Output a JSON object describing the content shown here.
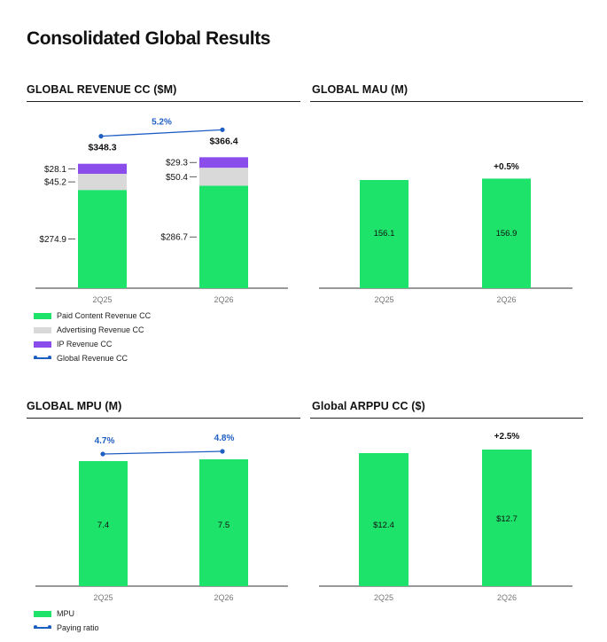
{
  "page": {
    "title": "Consolidated Global Results"
  },
  "colors": {
    "paid": "#1ee36a",
    "ads": "#d9d9d9",
    "ip": "#8a4dec",
    "line": "#1f5fc4",
    "axis": "#333333"
  },
  "chart_data": [
    {
      "id": "revenue",
      "type": "bar",
      "stacked": true,
      "title": "GLOBAL REVENUE CC ($M)",
      "categories": [
        "2Q25",
        "2Q26"
      ],
      "series": [
        {
          "name": "Paid Content Revenue CC",
          "values": [
            274.9,
            286.7
          ],
          "labels": [
            "$274.9",
            "$286.7"
          ],
          "color": "#1ee36a"
        },
        {
          "name": "Advertising Revenue CC",
          "values": [
            45.2,
            50.4
          ],
          "labels": [
            "$45.2",
            "$50.4"
          ],
          "color": "#d9d9d9"
        },
        {
          "name": "IP Revenue CC",
          "values": [
            28.1,
            29.3
          ],
          "labels": [
            "$28.1",
            "$29.3"
          ],
          "color": "#8a4dec"
        }
      ],
      "totals": [
        348.3,
        366.4
      ],
      "total_labels": [
        "$348.3",
        "$366.4"
      ],
      "line": {
        "name": "Global Revenue CC",
        "annotation": "5.2%"
      },
      "legend": [
        {
          "label": "Paid Content Revenue CC",
          "kind": "box",
          "color": "#1ee36a"
        },
        {
          "label": "Advertising Revenue CC",
          "kind": "box",
          "color": "#d9d9d9"
        },
        {
          "label": "IP Revenue CC",
          "kind": "box",
          "color": "#8a4dec"
        },
        {
          "label": "Global Revenue CC",
          "kind": "line",
          "color": "#1f5fc4"
        }
      ]
    },
    {
      "id": "mau",
      "type": "bar",
      "title": "GLOBAL MAU (M)",
      "categories": [
        "2Q25",
        "2Q26"
      ],
      "values": [
        156.1,
        156.9
      ],
      "labels": [
        "156.1",
        "156.9"
      ],
      "change": "+0.5%"
    },
    {
      "id": "mpu",
      "type": "bar",
      "title": "GLOBAL MPU (M)",
      "categories": [
        "2Q25",
        "2Q26"
      ],
      "values": [
        7.4,
        7.5
      ],
      "labels": [
        "7.4",
        "7.5"
      ],
      "line": {
        "name": "Paying ratio",
        "values": [
          4.7,
          4.8
        ],
        "labels": [
          "4.7%",
          "4.8%"
        ]
      },
      "legend": [
        {
          "label": "MPU",
          "kind": "box",
          "color": "#1ee36a"
        },
        {
          "label": "Paying ratio",
          "kind": "line",
          "color": "#1f5fc4"
        }
      ]
    },
    {
      "id": "arppu",
      "type": "bar",
      "title": "Global ARPPU CC ($)",
      "categories": [
        "2Q25",
        "2Q26"
      ],
      "values": [
        12.4,
        12.7
      ],
      "labels": [
        "$12.4",
        "$12.7"
      ],
      "change": "+2.5%"
    }
  ]
}
